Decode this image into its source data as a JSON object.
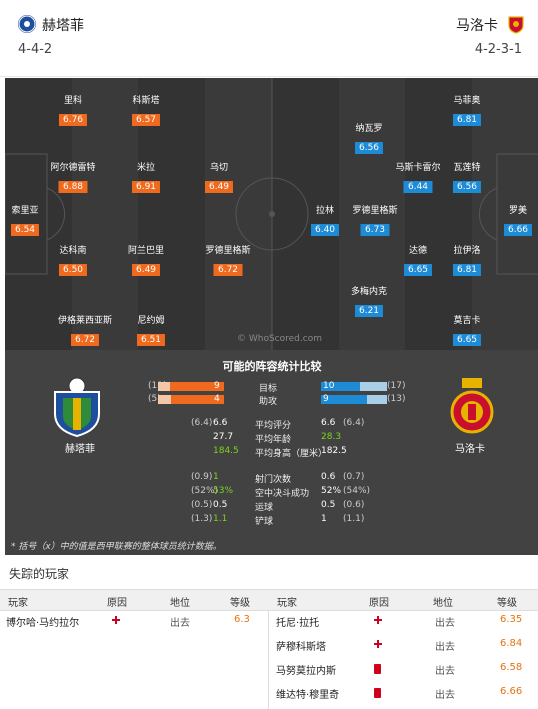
{
  "header": {
    "home": {
      "name": "赫塔菲",
      "formation": "4-4-2"
    },
    "away": {
      "name": "马洛卡",
      "formation": "4-2-3-1"
    }
  },
  "home_players": [
    {
      "name": "里科",
      "rating": "6.76"
    },
    {
      "name": "科斯塔",
      "rating": "6.57"
    },
    {
      "name": "阿尔德雷特",
      "rating": "6.88"
    },
    {
      "name": "米拉",
      "rating": "6.91"
    },
    {
      "name": "乌切",
      "rating": "6.49"
    },
    {
      "name": "索里亚",
      "rating": "6.54"
    },
    {
      "name": "达科南",
      "rating": "6.50"
    },
    {
      "name": "阿兰巴里",
      "rating": "6.49"
    },
    {
      "name": "罗德里格斯",
      "rating": "6.72"
    },
    {
      "name": "伊格莱西亚斯",
      "rating": "6.72"
    },
    {
      "name": "尼约姆",
      "rating": "6.51"
    }
  ],
  "away_players": [
    {
      "name": "马菲奥",
      "rating": "6.81"
    },
    {
      "name": "纳瓦罗",
      "rating": "6.56"
    },
    {
      "name": "马斯卡雷尔",
      "rating": "6.44"
    },
    {
      "name": "瓦莲特",
      "rating": "6.56"
    },
    {
      "name": "拉林",
      "rating": "6.40"
    },
    {
      "name": "罗德里格斯",
      "rating": "6.73"
    },
    {
      "name": "罗美",
      "rating": "6.66"
    },
    {
      "name": "达德",
      "rating": "6.65"
    },
    {
      "name": "拉伊洛",
      "rating": "6.81"
    },
    {
      "name": "多梅内克",
      "rating": "6.21"
    },
    {
      "name": "莫吉卡",
      "rating": "6.65"
    }
  ],
  "watermark": "© WhoScored.com",
  "compare": {
    "title": "可能的阵容统计比较",
    "home_name": "赫塔菲",
    "away_name": "马洛卡",
    "bars": [
      {
        "label": "目标",
        "home": "9",
        "home_total": "(11)",
        "away": "10",
        "away_total": "(17)",
        "home_frac": 0.82,
        "away_frac": 0.59
      },
      {
        "label": "助攻",
        "home": "4",
        "home_total": "(5)",
        "away": "9",
        "away_total": "(13)",
        "home_frac": 0.8,
        "away_frac": 0.69
      }
    ],
    "stats": [
      {
        "label": "平均评分",
        "home": "6.6",
        "home_sub": "(6.4)",
        "away": "6.6",
        "away_sub": "(6.4)",
        "home_green": false,
        "away_green": false
      },
      {
        "label": "平均年龄",
        "home": "27.7",
        "home_sub": "",
        "away": "28.3",
        "away_sub": "",
        "home_green": false,
        "away_green": true
      },
      {
        "label": "平均身高（厘米）",
        "home": "184.5",
        "home_sub": "",
        "away": "182.5",
        "away_sub": "",
        "home_green": true,
        "away_green": false
      }
    ],
    "stats2": [
      {
        "label": "射门次数",
        "home": "1",
        "home_sub": "(0.9)",
        "away": "0.6",
        "away_sub": "(0.7)",
        "home_green": true,
        "away_green": false
      },
      {
        "label": "空中决斗成功",
        "home": "53%",
        "home_sub": "(52%)",
        "away": "52%",
        "away_sub": "(54%)",
        "home_green": true,
        "away_green": false
      },
      {
        "label": "运球",
        "home": "0.5",
        "home_sub": "(0.5)",
        "away": "0.5",
        "away_sub": "(0.6)",
        "home_green": false,
        "away_green": false
      },
      {
        "label": "铲球",
        "home": "1.1",
        "home_sub": "(1.3)",
        "away": "1",
        "away_sub": "(1.1)",
        "home_green": true,
        "away_green": false
      }
    ],
    "footnote": "* 括号（x）中的值是西甲联赛的整体球员统计数据。"
  },
  "missing": {
    "title": "失踪的玩家",
    "headers": {
      "player": "玩家",
      "reason": "原因",
      "status": "地位",
      "rating": "等级"
    },
    "home": [
      {
        "player": "博尔哈·马约拉尔",
        "reason": "injury",
        "status": "出去",
        "rating": "6.3"
      }
    ],
    "away": [
      {
        "player": "托尼·拉托",
        "reason": "injury",
        "status": "出去",
        "rating": "6.35"
      },
      {
        "player": "萨穆科斯塔",
        "reason": "injury",
        "status": "出去",
        "rating": "6.84"
      },
      {
        "player": "马努莫拉内斯",
        "reason": "red-card",
        "status": "出去",
        "rating": "6.58"
      },
      {
        "player": "维达特·穆里奇",
        "reason": "red-card",
        "status": "出去",
        "rating": "6.66"
      }
    ]
  },
  "colors": {
    "home_bar": "#ef6a1e",
    "away_bar": "#1d8bd6",
    "accent_green": "#7cd322",
    "rating_orange": "#e8720c"
  }
}
